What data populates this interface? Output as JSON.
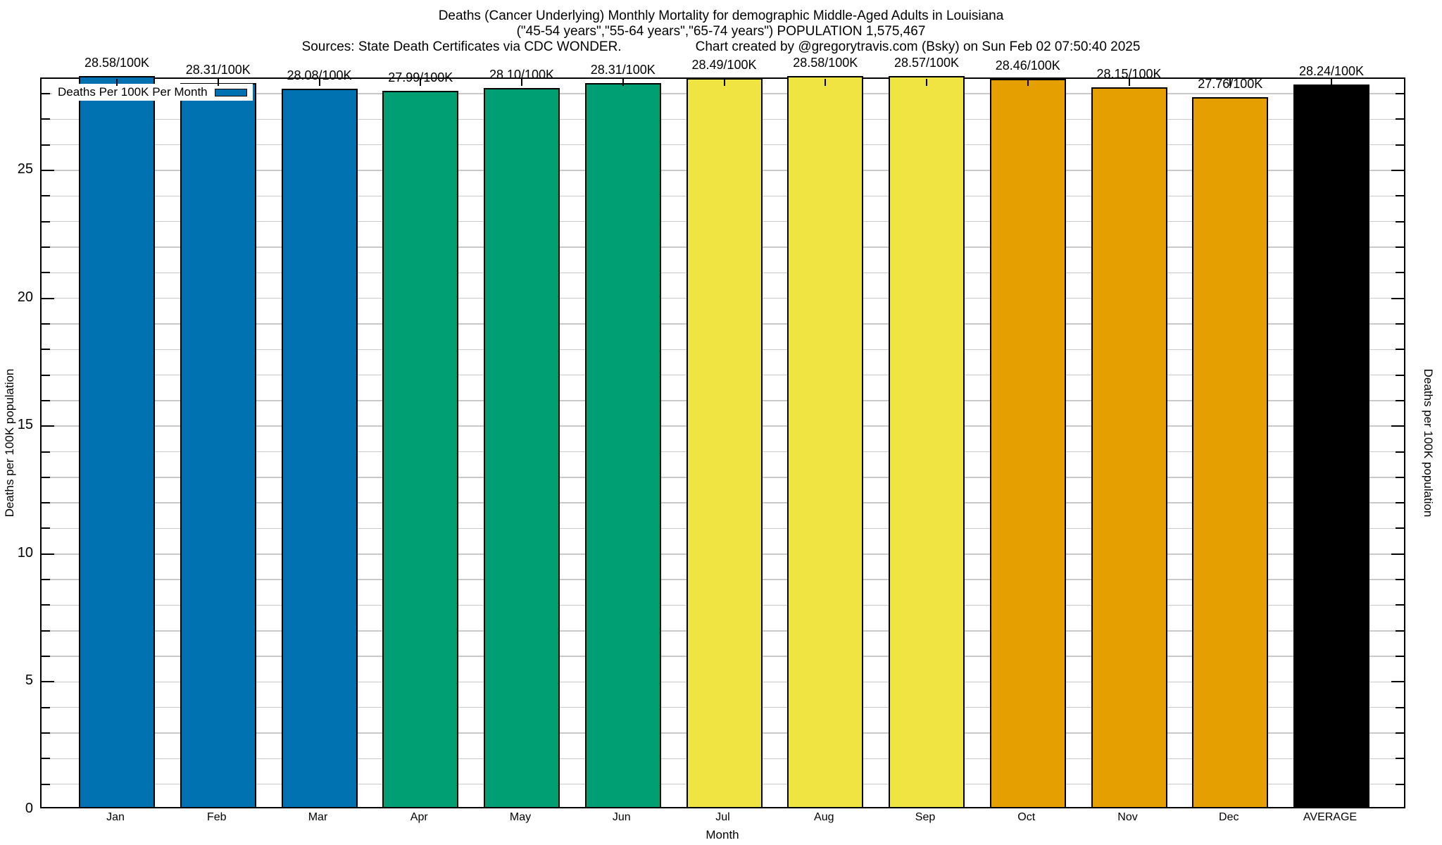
{
  "titles": {
    "line1": "Deaths (Cancer Underlying) Monthly Mortality for demographic Middle-Aged Adults in Louisiana",
    "line2": "(\"45-54 years\",\"55-64 years\",\"65-74 years\") POPULATION 1,575,467",
    "sources": "Sources: State Death Certificates via CDC WONDER.",
    "credit": "Chart created by @gregorytravis.com (Bsky) on Sun Feb 02 07:50:40 2025"
  },
  "axes": {
    "xlabel": "Month",
    "ylabel_left": "Deaths per 100K population",
    "ylabel_right": "Deaths per 100K population"
  },
  "chart_data": {
    "type": "bar",
    "title": "Deaths (Cancer Underlying) Monthly Mortality for demographic Middle-Aged Adults in Louisiana",
    "subtitle": "(\"45-54 years\",\"55-64 years\",\"65-74 years\") POPULATION 1,575,467",
    "xlabel": "Month",
    "ylabel": "Deaths per 100K population",
    "legend_label": "Deaths Per 100K Per Month",
    "legend_swatch_color": "#0072B2",
    "legend_position": "top-left-inside",
    "categories": [
      "Jan",
      "Feb",
      "Mar",
      "Apr",
      "May",
      "Jun",
      "Jul",
      "Aug",
      "Sep",
      "Oct",
      "Nov",
      "Dec",
      "AVERAGE"
    ],
    "values": [
      28.58,
      28.31,
      28.08,
      27.99,
      28.1,
      28.31,
      28.49,
      28.58,
      28.57,
      28.46,
      28.15,
      27.76,
      28.24
    ],
    "bar_labels": [
      "28.58/100K",
      "28.31/100K",
      "28.08/100K",
      "27.99/100K",
      "28.10/100K",
      "28.31/100K",
      "28.49/100K",
      "28.58/100K",
      "28.57/100K",
      "28.46/100K",
      "28.15/100K",
      "27.76/100K",
      "28.24/100K"
    ],
    "bar_colors": [
      "#0072B2",
      "#0072B2",
      "#0072B2",
      "#009E73",
      "#009E73",
      "#009E73",
      "#F0E442",
      "#F0E442",
      "#F0E442",
      "#E69F00",
      "#E69F00",
      "#E69F00",
      "#000000"
    ],
    "ylim": [
      0,
      28.58
    ],
    "yticks_labeled": [
      0,
      5,
      10,
      15,
      20,
      25
    ],
    "minor_grid_step": 1,
    "grid": "light-gray horizontal minor gridlines every 1 unit, mirrored tick marks on all four axes"
  },
  "colors": {
    "blue": "#0072B2",
    "green": "#009E73",
    "yellow": "#F0E442",
    "orange": "#E69F00",
    "black": "#000000",
    "gridline": "#c9c9c9",
    "frame": "#000000",
    "background": "#ffffff"
  }
}
